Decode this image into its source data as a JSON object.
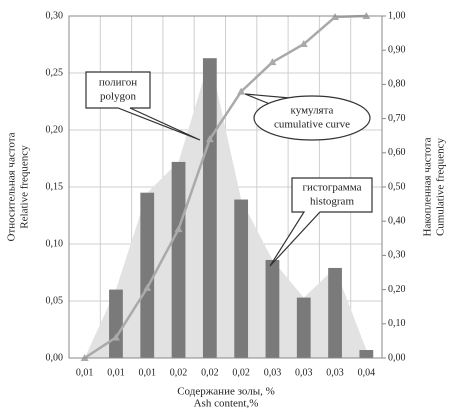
{
  "chart_data": {
    "type": "bar",
    "categories": [
      "0,01",
      "0,01",
      "0,01",
      "0,02",
      "0,02",
      "0,02",
      "0,03",
      "0,03",
      "0,03",
      "0,04"
    ],
    "series": [
      {
        "type": "bar",
        "color": "#7a7a7a",
        "values": [
          0,
          0.06,
          0.145,
          0.172,
          0.263,
          0.139,
          0.086,
          0.053,
          0.079,
          0.007
        ]
      },
      {
        "type": "area",
        "color": "#e2e2e2",
        "values": [
          0,
          0.06,
          0.145,
          0.172,
          0.263,
          0.139,
          0.086,
          0.053,
          0.079,
          0.007
        ]
      },
      {
        "type": "line",
        "axis": "y2",
        "color": "#aaaaaa",
        "values": [
          0,
          0.06,
          0.205,
          0.377,
          0.64,
          0.779,
          0.865,
          0.918,
          0.997,
          1.0
        ]
      }
    ],
    "ylim": [
      0,
      0.3
    ],
    "yticks": [
      {
        "value": 0,
        "label": "0,00"
      },
      {
        "value": 0.05,
        "label": "0,05"
      },
      {
        "value": 0.1,
        "label": "0,10"
      },
      {
        "value": 0.15,
        "label": "0,15"
      },
      {
        "value": 0.2,
        "label": "0,20"
      },
      {
        "value": 0.25,
        "label": "0,25"
      },
      {
        "value": 0.3,
        "label": "0,30"
      }
    ],
    "y2lim": [
      0,
      1
    ],
    "y2ticks": [
      {
        "value": 0,
        "label": "0,00"
      },
      {
        "value": 0.1,
        "label": "0,10"
      },
      {
        "value": 0.2,
        "label": "0,20"
      },
      {
        "value": 0.3,
        "label": "0,30"
      },
      {
        "value": 0.4,
        "label": "0,40"
      },
      {
        "value": 0.5,
        "label": "0,50"
      },
      {
        "value": 0.6,
        "label": "0,60"
      },
      {
        "value": 0.7,
        "label": "0,70"
      },
      {
        "value": 0.8,
        "label": "0,80"
      },
      {
        "value": 0.9,
        "label": "0,90"
      },
      {
        "value": 1,
        "label": "1,00"
      }
    ],
    "grid": true,
    "ylabel": [
      "Относительная частота",
      "Relative frequency"
    ],
    "y2label": [
      "Накопленная частота",
      "Cumulative frequency"
    ],
    "xlabel": [
      "Содержание золы, %",
      "Ash content,%"
    ],
    "annotations": [
      [
        "полигон",
        "polygon"
      ],
      [
        "кумулята",
        "cumulative curve"
      ],
      [
        "гистограмма",
        "histogram"
      ]
    ]
  }
}
